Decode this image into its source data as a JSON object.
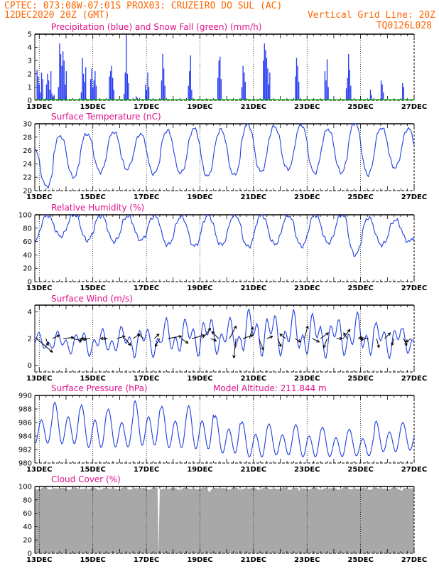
{
  "header": {
    "line1_left": "CPTEC:   073:08W-07:01S   PROX03: CRUZEIRO DO SUL (AC)",
    "line2_left": "12DEC2020 20Z (GMT)",
    "line2_right": "Vertical Grid Line: 20Z",
    "line3_right": "TQ0126L028"
  },
  "colors": {
    "header": "#ff6600",
    "title": "#e0118a",
    "series_line": "#2040e0",
    "precip": "#2a3ef0",
    "snow": "#00aa00",
    "cloud": "#a8a8a8",
    "wind_arrow": "#000000"
  },
  "chart_data": [
    {
      "type": "bar",
      "title": "Precipitation (blue) and Snow Fall (green) (mm/h)",
      "ylim": [
        0,
        5
      ],
      "yticks": [
        0,
        1,
        2,
        3,
        4,
        5
      ],
      "xlim": [
        12.833,
        27.0
      ],
      "xticks": [
        "13DEC",
        "15DEC",
        "17DEC",
        "19DEC",
        "21DEC",
        "23DEC",
        "25DEC",
        "27DEC"
      ],
      "grid": false,
      "series": [
        {
          "name": "blue",
          "daily_events": [
            {
              "day": 12.9,
              "values": [
                2.3,
                1.8,
                1.2,
                0.6,
                2.1,
                1.6
              ]
            },
            {
              "day": 13.25,
              "values": [
                1.2,
                2.0,
                1.5,
                0.8,
                2.2,
                0.5,
                0.3,
                0.4
              ]
            },
            {
              "day": 13.7,
              "values": [
                1.0,
                4.3,
                3.5,
                2.6,
                3.7,
                3.0,
                1.2,
                2.2
              ]
            },
            {
              "day": 14.55,
              "values": [
                0.6,
                3.2,
                2.0,
                1.4,
                2.5
              ]
            },
            {
              "day": 14.9,
              "values": [
                1.6,
                2.4,
                1.0,
                1.5,
                2.2,
                1.1
              ]
            },
            {
              "day": 15.6,
              "values": [
                1.8,
                2.2,
                2.6,
                1.7,
                0.8
              ]
            },
            {
              "day": 16.15,
              "values": [
                0.5,
                2.1,
                4.9,
                2.0,
                1.3
              ]
            },
            {
              "day": 16.6,
              "values": [
                0.3,
                0.2
              ]
            },
            {
              "day": 16.95,
              "values": [
                1.2,
                0.8,
                2.1,
                1.0
              ]
            },
            {
              "day": 17.55,
              "values": [
                1.5,
                3.5,
                2.4,
                1.1
              ]
            },
            {
              "day": 18.55,
              "values": [
                1.1,
                2.2,
                3.4,
                0.8
              ]
            },
            {
              "day": 19.65,
              "values": [
                1.7,
                3.0,
                3.3,
                1.6
              ]
            },
            {
              "day": 20.55,
              "values": [
                1.0,
                2.6,
                2.1,
                1.4
              ]
            },
            {
              "day": 21.35,
              "values": [
                3.0,
                4.3,
                3.8,
                3.2,
                2.4
              ]
            },
            {
              "day": 21.55,
              "values": [
                1.2,
                2.1
              ]
            },
            {
              "day": 22.55,
              "values": [
                1.8,
                3.2,
                2.6,
                1.4
              ]
            },
            {
              "day": 23.65,
              "values": [
                2.2,
                1.5,
                3.1,
                1.0
              ]
            },
            {
              "day": 24.45,
              "values": [
                0.9,
                1.7,
                3.5,
                2.3,
                1.1
              ]
            },
            {
              "day": 25.35,
              "values": [
                0.8,
                0.4
              ]
            },
            {
              "day": 25.75,
              "values": [
                1.5,
                1.2,
                0.6
              ]
            },
            {
              "day": 26.55,
              "values": [
                1.3,
                1.0
              ]
            }
          ]
        },
        {
          "name": "green",
          "values": [
            0.0
          ]
        }
      ]
    },
    {
      "type": "line",
      "title": "Surface Temperature (nC)",
      "ylim": [
        20,
        30
      ],
      "yticks": [
        20,
        22,
        24,
        26,
        28,
        30
      ],
      "xlim": [
        12.833,
        27.0
      ],
      "xticks": [
        "13DEC",
        "15DEC",
        "17DEC",
        "19DEC",
        "21DEC",
        "23DEC",
        "25DEC",
        "27DEC"
      ],
      "daily": [
        {
          "min": 20.6,
          "max": 26.5
        },
        {
          "min": 22.0,
          "max": 28.2
        },
        {
          "min": 22.8,
          "max": 28.5
        },
        {
          "min": 23.2,
          "max": 28.8
        },
        {
          "min": 22.5,
          "max": 28.5
        },
        {
          "min": 22.6,
          "max": 29.0
        },
        {
          "min": 22.1,
          "max": 29.3
        },
        {
          "min": 22.3,
          "max": 29.1
        },
        {
          "min": 22.8,
          "max": 30.0
        },
        {
          "min": 23.2,
          "max": 29.6
        },
        {
          "min": 22.6,
          "max": 29.9
        },
        {
          "min": 22.7,
          "max": 29.2
        },
        {
          "min": 22.4,
          "max": 30.2
        },
        {
          "min": 23.4,
          "max": 29.4
        },
        {
          "min": 23.0,
          "max": 29.3
        }
      ]
    },
    {
      "type": "line",
      "title": "Relative Humidity (%)",
      "ylim": [
        0,
        100
      ],
      "yticks": [
        0,
        20,
        40,
        60,
        80,
        100
      ],
      "xlim": [
        12.833,
        27.0
      ],
      "xticks": [
        "13DEC",
        "15DEC",
        "17DEC",
        "19DEC",
        "21DEC",
        "23DEC",
        "25DEC",
        "27DEC"
      ],
      "daily": [
        {
          "min": 60,
          "max": 100
        },
        {
          "min": 68,
          "max": 100
        },
        {
          "min": 62,
          "max": 99
        },
        {
          "min": 60,
          "max": 98
        },
        {
          "min": 62,
          "max": 98
        },
        {
          "min": 55,
          "max": 97
        },
        {
          "min": 53,
          "max": 99
        },
        {
          "min": 55,
          "max": 100
        },
        {
          "min": 52,
          "max": 100
        },
        {
          "min": 56,
          "max": 99
        },
        {
          "min": 53,
          "max": 100
        },
        {
          "min": 58,
          "max": 100
        },
        {
          "min": 40,
          "max": 96
        },
        {
          "min": 55,
          "max": 92
        },
        {
          "min": 60,
          "max": 90
        }
      ]
    },
    {
      "type": "line",
      "title": "Surface Wind (m/s)",
      "ylim": [
        -0.5,
        4.5
      ],
      "yticks": [
        0,
        2,
        4
      ],
      "xlim": [
        12.833,
        27.0
      ],
      "xticks": [
        "13DEC",
        "15DEC",
        "17DEC",
        "19DEC",
        "21DEC",
        "23DEC",
        "25DEC",
        "27DEC"
      ],
      "speed_daily": [
        {
          "min": 1.0,
          "max": 2.5
        },
        {
          "min": 0.8,
          "max": 2.6
        },
        {
          "min": 0.6,
          "max": 2.8
        },
        {
          "min": 0.7,
          "max": 3.0
        },
        {
          "min": 0.5,
          "max": 3.1
        },
        {
          "min": 0.6,
          "max": 3.6
        },
        {
          "min": 0.6,
          "max": 3.9
        },
        {
          "min": 0.7,
          "max": 3.6
        },
        {
          "min": 0.6,
          "max": 4.4
        },
        {
          "min": 0.5,
          "max": 4.2
        },
        {
          "min": 0.4,
          "max": 4.1
        },
        {
          "min": 0.5,
          "max": 3.8
        },
        {
          "min": 0.4,
          "max": 4.0
        },
        {
          "min": 0.5,
          "max": 3.4
        },
        {
          "min": 0.7,
          "max": 3.0
        }
      ],
      "arrows": [
        {
          "day": 12.9,
          "u": 1.4,
          "v": -1.2
        },
        {
          "day": 13.25,
          "u": 0.2,
          "v": -0.6
        },
        {
          "day": 13.5,
          "u": 0.6,
          "v": 0.3
        },
        {
          "day": 13.9,
          "u": 0.9,
          "v": 0.1
        },
        {
          "day": 14.25,
          "u": 0.8,
          "v": -0.2
        },
        {
          "day": 14.5,
          "u": 0.6,
          "v": -0.1
        },
        {
          "day": 14.9,
          "u": -0.8,
          "v": 0.0
        },
        {
          "day": 15.3,
          "u": 0.5,
          "v": 0.0
        },
        {
          "day": 15.55,
          "u": -0.6,
          "v": 0.0
        },
        {
          "day": 15.9,
          "u": 0.7,
          "v": 0.2
        },
        {
          "day": 16.2,
          "u": 0.5,
          "v": -0.6
        },
        {
          "day": 16.5,
          "u": 0.6,
          "v": 0.4
        },
        {
          "day": 16.9,
          "u": -0.5,
          "v": 0.4
        },
        {
          "day": 17.3,
          "u": 0.4,
          "v": 0.4
        },
        {
          "day": 17.5,
          "u": -0.4,
          "v": -0.7
        },
        {
          "day": 17.8,
          "u": 1.2,
          "v": 0.2
        },
        {
          "day": 18.3,
          "u": 0.6,
          "v": -0.4
        },
        {
          "day": 18.7,
          "u": 1.1,
          "v": 0.3
        },
        {
          "day": 19.1,
          "u": 0.7,
          "v": 0.9
        },
        {
          "day": 19.4,
          "u": 0.5,
          "v": -0.2
        },
        {
          "day": 19.7,
          "u": -0.6,
          "v": 0.6
        },
        {
          "day": 20.1,
          "u": 0.6,
          "v": 1.1
        },
        {
          "day": 20.35,
          "u": -0.2,
          "v": -1.7
        },
        {
          "day": 20.6,
          "u": 0.9,
          "v": 0.3
        },
        {
          "day": 20.85,
          "u": 0.3,
          "v": 1.0
        },
        {
          "day": 21.2,
          "u": 0.4,
          "v": -1.0
        },
        {
          "day": 21.5,
          "u": 0.5,
          "v": 0.2
        },
        {
          "day": 21.9,
          "u": 0.3,
          "v": -0.7
        },
        {
          "day": 22.2,
          "u": -0.5,
          "v": 0.4
        },
        {
          "day": 22.55,
          "u": 0.5,
          "v": -0.3
        },
        {
          "day": 22.9,
          "u": 0.3,
          "v": 1.1
        },
        {
          "day": 23.2,
          "u": 0.6,
          "v": -0.3
        },
        {
          "day": 23.5,
          "u": 0.7,
          "v": 0.5
        },
        {
          "day": 23.75,
          "u": -0.3,
          "v": -0.8
        },
        {
          "day": 24.1,
          "u": 0.5,
          "v": 0.0
        },
        {
          "day": 24.35,
          "u": 0.6,
          "v": 0.8
        },
        {
          "day": 24.5,
          "u": -0.3,
          "v": 0.5
        },
        {
          "day": 24.9,
          "u": 0.5,
          "v": -0.1
        },
        {
          "day": 25.3,
          "u": -0.8,
          "v": 0.1
        },
        {
          "day": 25.6,
          "u": 0.2,
          "v": -0.8
        },
        {
          "day": 25.9,
          "u": 0.5,
          "v": 0.5
        },
        {
          "day": 26.25,
          "u": -0.2,
          "v": -0.6
        },
        {
          "day": 26.6,
          "u": 0.3,
          "v": -0.6
        },
        {
          "day": 26.9,
          "u": -0.5,
          "v": -0.3
        }
      ]
    },
    {
      "type": "line",
      "title": "Surface Pressure (hPa)",
      "annotation": "Model Altitude: 211.844 m",
      "ylim": [
        980,
        990
      ],
      "yticks": [
        980,
        982,
        984,
        986,
        988,
        990
      ],
      "xlim": [
        12.833,
        27.0
      ],
      "xticks": [
        "13DEC",
        "15DEC",
        "17DEC",
        "19DEC",
        "21DEC",
        "23DEC",
        "25DEC",
        "27DEC"
      ],
      "daily": [
        {
          "hi": 988.3,
          "lo": 982.0
        },
        {
          "hi": 989.0,
          "lo": 981.8
        },
        {
          "hi": 988.6,
          "lo": 981.2
        },
        {
          "hi": 988.0,
          "lo": 981.4
        },
        {
          "hi": 989.2,
          "lo": 981.5
        },
        {
          "hi": 988.4,
          "lo": 981.2
        },
        {
          "hi": 988.5,
          "lo": 981.0
        },
        {
          "hi": 987.0,
          "lo": 980.5
        },
        {
          "hi": 986.1,
          "lo": 980.0
        },
        {
          "hi": 985.8,
          "lo": 980.4
        },
        {
          "hi": 985.7,
          "lo": 980.1
        },
        {
          "hi": 985.3,
          "lo": 980.2
        },
        {
          "hi": 985.0,
          "lo": 980.4
        },
        {
          "hi": 986.2,
          "lo": 980.9
        },
        {
          "hi": 986.0,
          "lo": 981.2
        }
      ]
    },
    {
      "type": "area",
      "title": "Cloud Cover (%)",
      "ylim": [
        0,
        100
      ],
      "yticks": [
        0,
        20,
        40,
        60,
        80,
        100
      ],
      "xlim": [
        12.833,
        27.0
      ],
      "xticks": [
        "13DEC",
        "15DEC",
        "17DEC",
        "19DEC",
        "21DEC",
        "23DEC",
        "25DEC",
        "27DEC"
      ],
      "typical": 97,
      "dips": [
        {
          "day": 17.45,
          "value": 0
        },
        {
          "day": 19.35,
          "value": 92
        },
        {
          "day": 22.7,
          "value": 93
        },
        {
          "day": 26.55,
          "value": 93
        }
      ]
    }
  ]
}
